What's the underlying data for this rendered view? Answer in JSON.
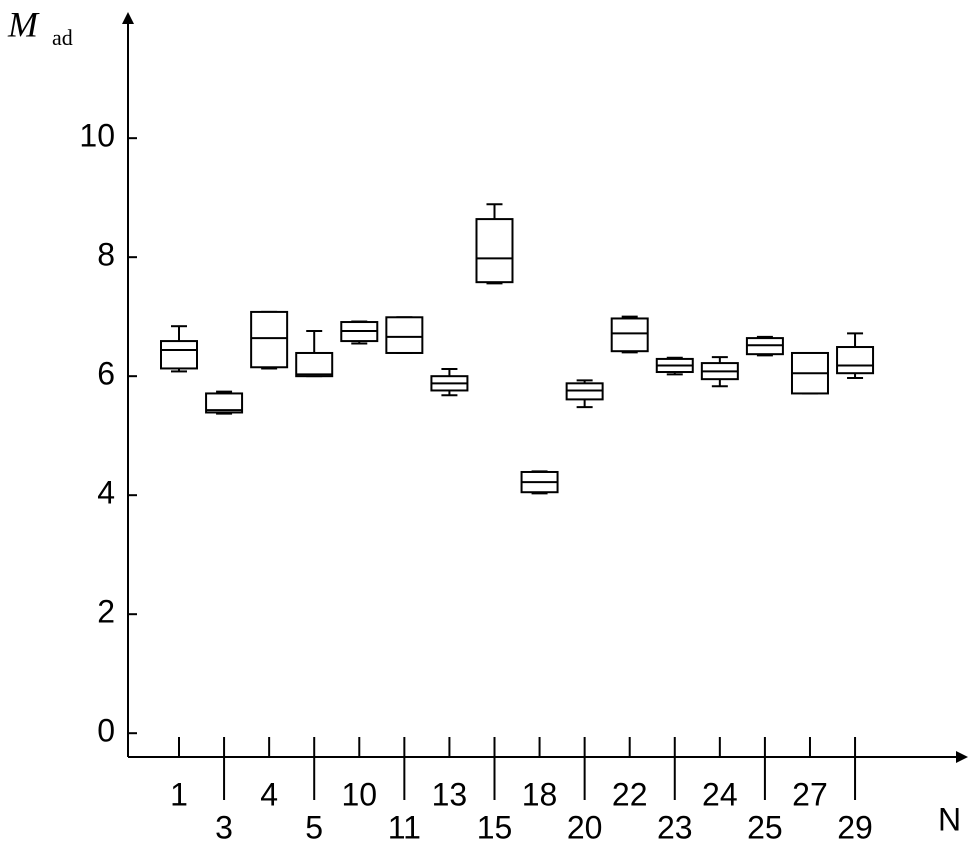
{
  "chart_data": {
    "type": "box",
    "ylabel": "M",
    "ylabel_sub": "ad",
    "xlabel": "N",
    "categories": [
      "1",
      "3",
      "4",
      "5",
      "10",
      "11",
      "13",
      "15",
      "18",
      "20",
      "22",
      "23",
      "24",
      "25",
      "27",
      "29"
    ],
    "max": [
      6.84,
      5.74,
      7.08,
      6.76,
      6.92,
      6.99,
      6.12,
      8.89,
      4.4,
      5.93,
      7.0,
      6.31,
      6.32,
      6.66,
      6.39,
      6.72
    ],
    "q3": [
      6.59,
      5.71,
      7.08,
      6.39,
      6.91,
      6.99,
      6.0,
      8.64,
      4.39,
      5.88,
      6.97,
      6.29,
      6.22,
      6.64,
      6.39,
      6.49
    ],
    "median": [
      6.44,
      5.43,
      6.64,
      6.03,
      6.76,
      6.66,
      5.88,
      7.98,
      4.22,
      5.76,
      6.72,
      6.18,
      6.08,
      6.52,
      6.05,
      6.18
    ],
    "q1": [
      6.13,
      5.39,
      6.15,
      6.0,
      6.59,
      6.39,
      5.76,
      7.58,
      4.05,
      5.61,
      6.42,
      6.07,
      5.95,
      6.37,
      5.71,
      6.05
    ],
    "min": [
      6.08,
      5.37,
      6.13,
      6.0,
      6.55,
      6.39,
      5.68,
      7.56,
      4.03,
      5.48,
      6.4,
      6.03,
      5.83,
      6.35,
      5.71,
      5.97
    ],
    "color": "#000000",
    "ylim": [
      -0.4,
      12.07
    ],
    "yticks": [
      0,
      2,
      4,
      6,
      8,
      10
    ],
    "grid": false
  }
}
